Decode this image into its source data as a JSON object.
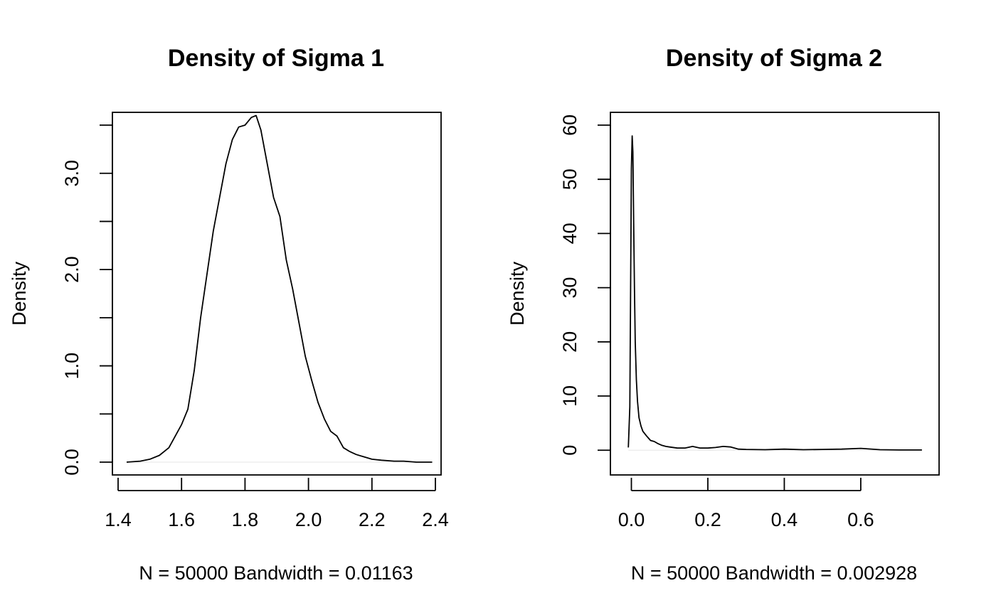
{
  "chart_data": [
    {
      "type": "line",
      "title": "Density of Sigma 1",
      "xlabel": "N = 50000   Bandwidth = 0.01163",
      "ylabel": "Density",
      "xlim": [
        1.4,
        2.4
      ],
      "ylim": [
        0,
        3.5
      ],
      "xticks": [
        1.4,
        1.6,
        1.8,
        2.0,
        2.2,
        2.4
      ],
      "xtick_labels": [
        "1.4",
        "1.6",
        "1.8",
        "2.0",
        "2.2",
        "2.4"
      ],
      "yticks": [
        0,
        0.5,
        1.0,
        1.5,
        2.0,
        2.5,
        3.0,
        3.5
      ],
      "ytick_labels": [
        "0.0",
        "",
        "1.0",
        "",
        "2.0",
        "",
        "3.0",
        ""
      ],
      "grid": false,
      "series": [
        {
          "x": [
            1.427,
            1.47,
            1.5,
            1.53,
            1.56,
            1.58,
            1.6,
            1.62,
            1.64,
            1.66,
            1.68,
            1.7,
            1.72,
            1.74,
            1.76,
            1.78,
            1.8,
            1.82,
            1.835,
            1.85,
            1.87,
            1.89,
            1.91,
            1.93,
            1.95,
            1.97,
            1.99,
            2.01,
            2.03,
            2.05,
            2.07,
            2.09,
            2.11,
            2.13,
            2.15,
            2.17,
            2.2,
            2.23,
            2.27,
            2.3,
            2.34,
            2.39
          ],
          "y": [
            0.0,
            0.01,
            0.03,
            0.07,
            0.15,
            0.27,
            0.39,
            0.55,
            0.95,
            1.5,
            1.95,
            2.4,
            2.75,
            3.1,
            3.35,
            3.48,
            3.5,
            3.58,
            3.6,
            3.45,
            3.1,
            2.75,
            2.55,
            2.1,
            1.8,
            1.45,
            1.1,
            0.85,
            0.62,
            0.45,
            0.32,
            0.27,
            0.15,
            0.11,
            0.08,
            0.06,
            0.03,
            0.02,
            0.01,
            0.01,
            0.0,
            0.0
          ]
        }
      ]
    },
    {
      "type": "line",
      "title": "Density of Sigma 2",
      "xlabel": "N = 50000   Bandwidth = 0.002928",
      "ylabel": "Density",
      "xlim": [
        -0.04,
        0.79
      ],
      "ylim": [
        -2.2,
        60
      ],
      "xticks": [
        0.0,
        0.2,
        0.4,
        0.6
      ],
      "xtick_labels": [
        "0.0",
        "0.2",
        "0.4",
        "0.6"
      ],
      "yticks": [
        0,
        10,
        20,
        30,
        40,
        50,
        60
      ],
      "ytick_labels": [
        "0",
        "10",
        "20",
        "30",
        "40",
        "50",
        "60"
      ],
      "grid": false,
      "series": [
        {
          "x": [
            -0.008,
            -0.004,
            -0.002,
            0.0,
            0.002,
            0.004,
            0.006,
            0.008,
            0.01,
            0.013,
            0.016,
            0.02,
            0.025,
            0.03,
            0.04,
            0.05,
            0.06,
            0.07,
            0.08,
            0.09,
            0.1,
            0.12,
            0.14,
            0.16,
            0.18,
            0.2,
            0.22,
            0.24,
            0.26,
            0.28,
            0.3,
            0.35,
            0.4,
            0.45,
            0.5,
            0.55,
            0.6,
            0.65,
            0.7,
            0.76
          ],
          "y": [
            0.5,
            8.0,
            30.0,
            52.0,
            58.0,
            55.0,
            42.0,
            30.0,
            20.0,
            13.0,
            9.0,
            6.0,
            4.5,
            3.5,
            2.6,
            1.8,
            1.6,
            1.2,
            0.9,
            0.7,
            0.6,
            0.4,
            0.4,
            0.7,
            0.4,
            0.4,
            0.5,
            0.7,
            0.6,
            0.2,
            0.15,
            0.1,
            0.2,
            0.1,
            0.15,
            0.2,
            0.35,
            0.1,
            0.05,
            0.05
          ]
        }
      ]
    }
  ]
}
